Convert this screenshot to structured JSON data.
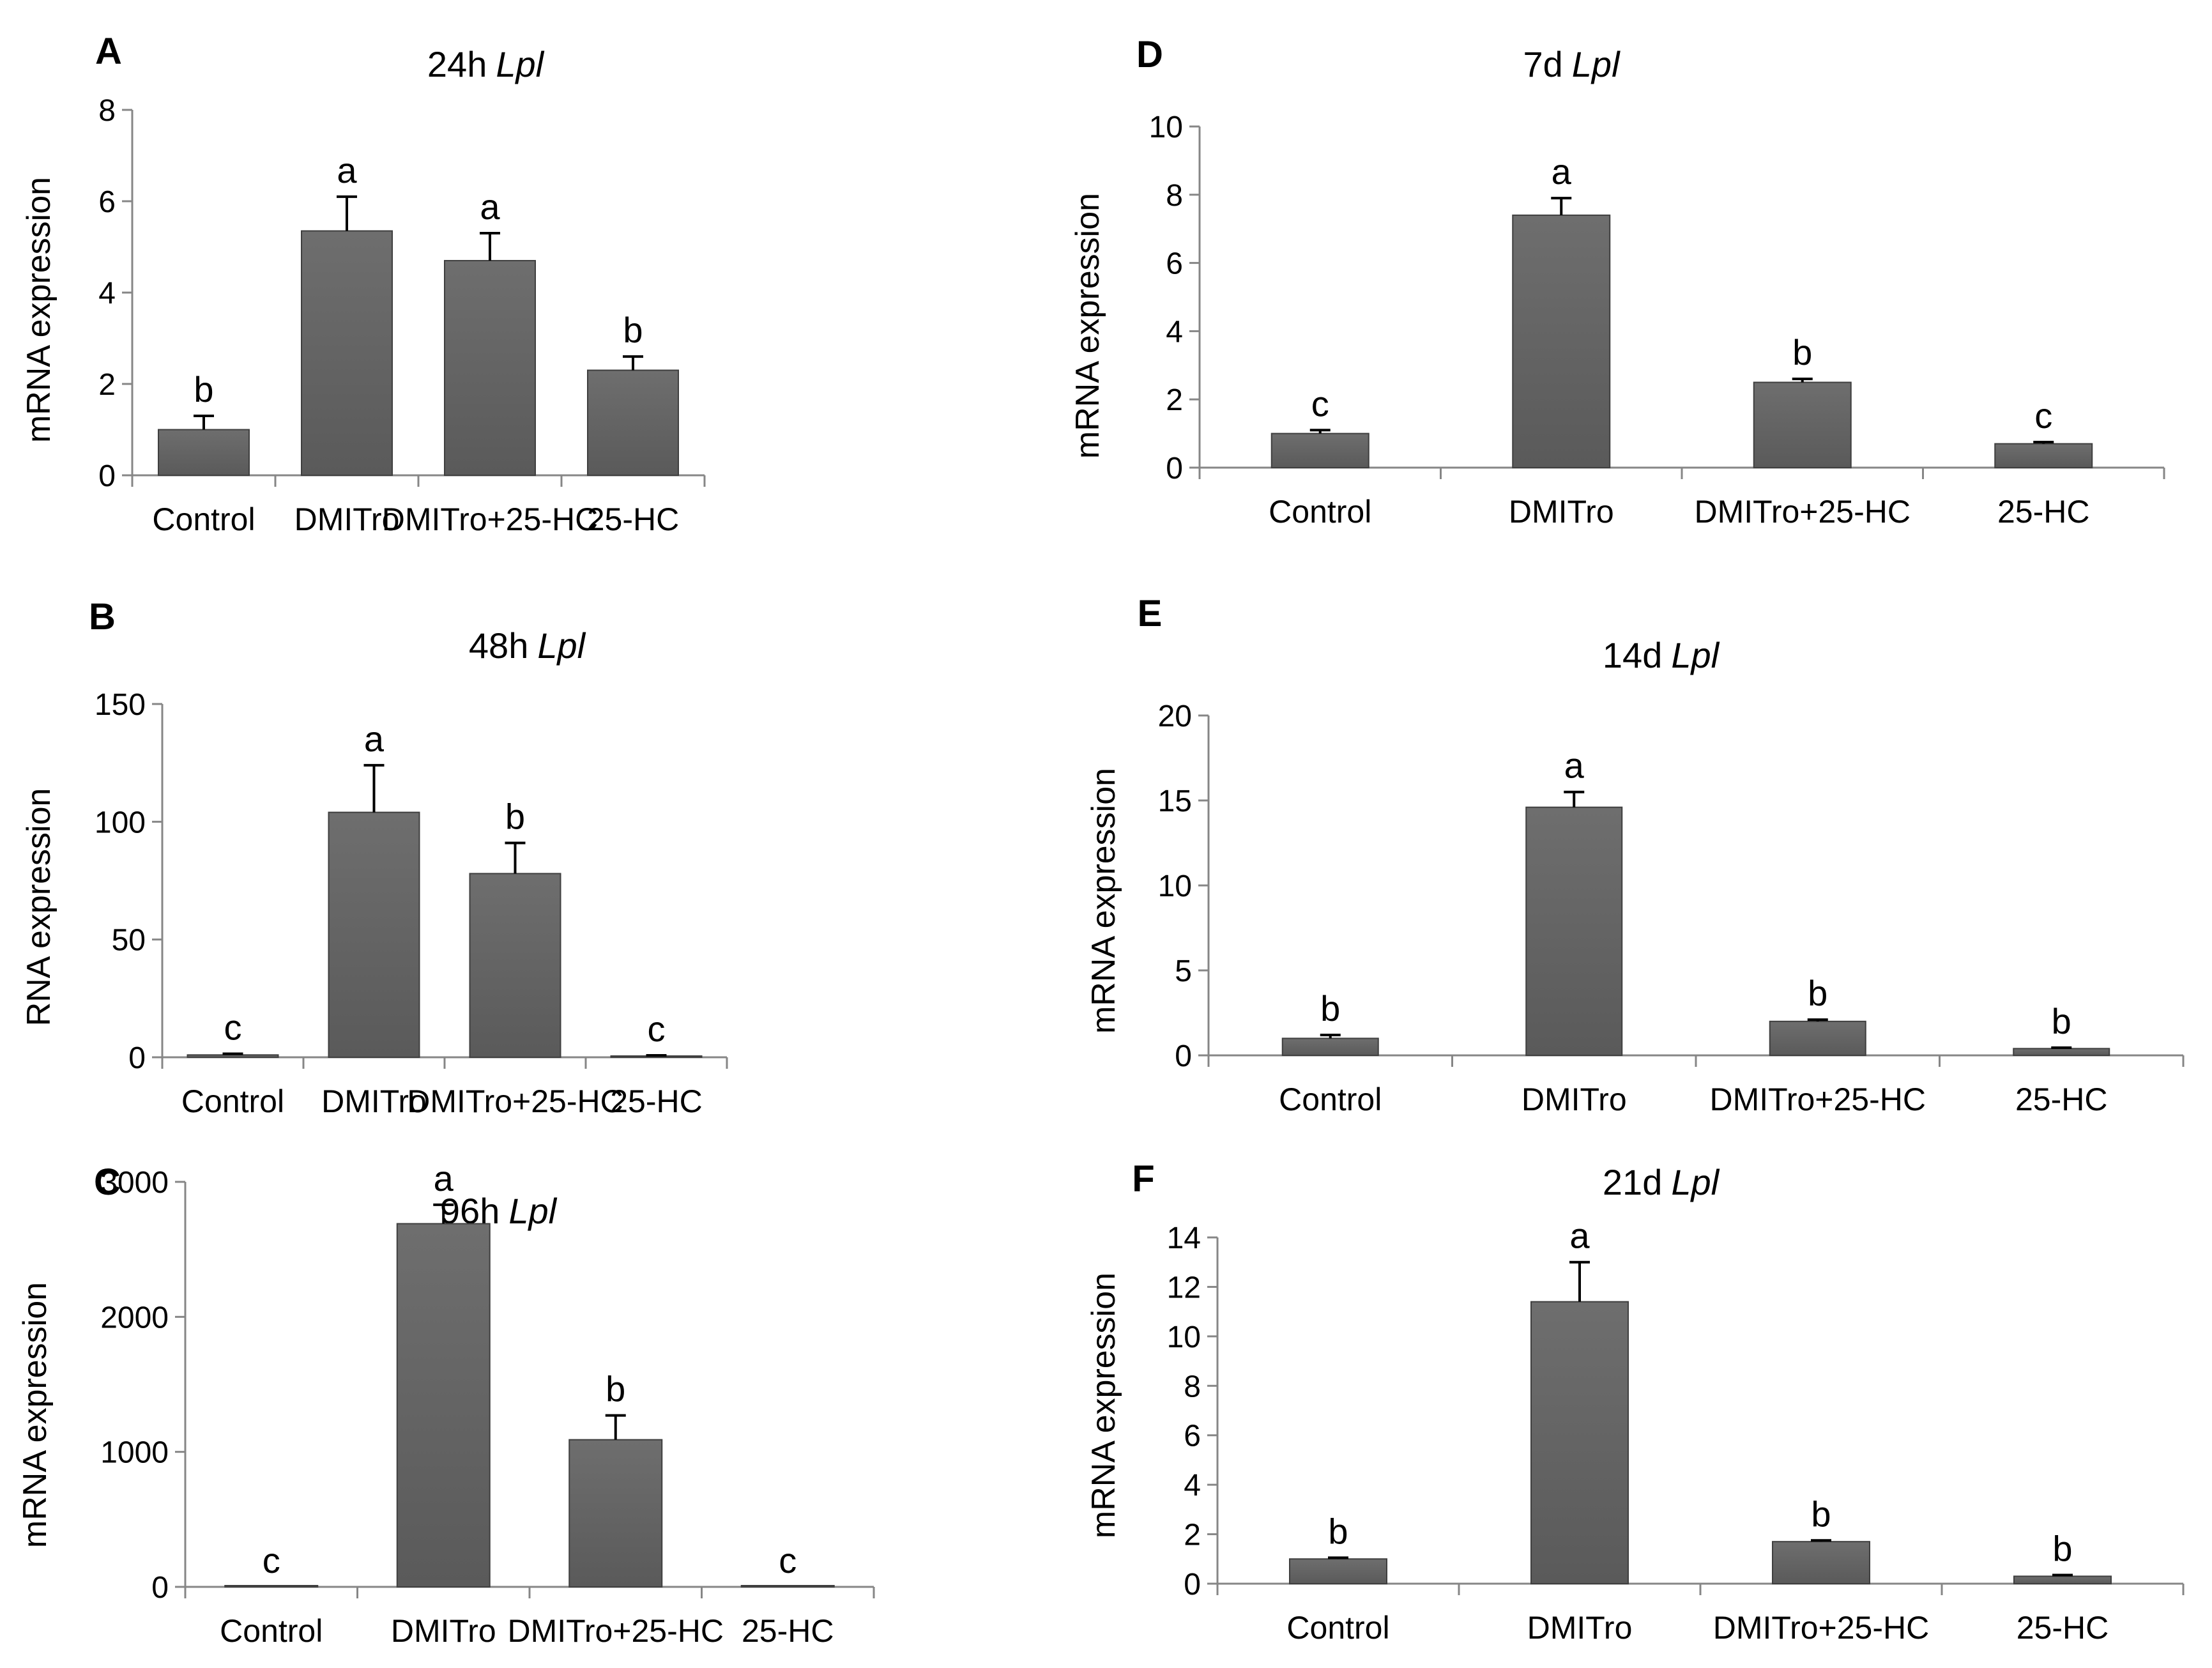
{
  "figure": {
    "description_labels": {
      "gene_symbol": "Lpl"
    },
    "bar_color": "#5a5a5a",
    "bar_edge_color": "#3f3f3f",
    "axis_color": "#868686"
  },
  "chart_data": [
    {
      "panel": "A",
      "type": "bar",
      "title": "24h Lpl",
      "title_prefix": "24h",
      "title_gene": "Lpl",
      "xlabel": "",
      "ylabel": "mRNA expression",
      "categories": [
        "Control",
        "DMITro",
        "DMITro+25-HC",
        "25-HC"
      ],
      "values": [
        1.0,
        5.35,
        4.7,
        2.3
      ],
      "errors": [
        0.3,
        0.75,
        0.6,
        0.3
      ],
      "significance": [
        "b",
        "a",
        "a",
        "b"
      ],
      "ylim": [
        0,
        8
      ],
      "yticks": [
        0,
        2,
        4,
        6,
        8
      ]
    },
    {
      "panel": "B",
      "type": "bar",
      "title": "48h Lpl",
      "title_prefix": "48h",
      "title_gene": "Lpl",
      "xlabel": "",
      "ylabel": "RNA expression",
      "categories": [
        "Control",
        "DMITro",
        "DMITro+25-HC",
        "25-HC"
      ],
      "values": [
        1,
        104,
        78,
        0.5
      ],
      "errors": [
        0.5,
        20,
        13,
        0.3
      ],
      "significance": [
        "c",
        "a",
        "b",
        "c"
      ],
      "ylim": [
        0,
        150
      ],
      "yticks": [
        0,
        50,
        100,
        150
      ]
    },
    {
      "panel": "C",
      "type": "bar",
      "title": "96h Lpl",
      "title_prefix": "96h",
      "title_gene": "Lpl",
      "xlabel": "",
      "ylabel": "mRNA expression",
      "categories": [
        "Control",
        "DMITro",
        "DMITro+25-HC",
        "25-HC"
      ],
      "values": [
        1,
        2690,
        1090,
        1
      ],
      "errors": [
        0,
        140,
        180,
        0
      ],
      "significance": [
        "c",
        "a",
        "b",
        "c"
      ],
      "ylim": [
        0,
        3000
      ],
      "yticks": [
        0,
        1000,
        2000,
        3000
      ]
    },
    {
      "panel": "D",
      "type": "bar",
      "title": "7d Lpl",
      "title_prefix": "7d",
      "title_gene": "Lpl",
      "xlabel": "",
      "ylabel": "mRNA expression",
      "categories": [
        "Control",
        "DMITro",
        "DMITro+25-HC",
        "25-HC"
      ],
      "values": [
        1.0,
        7.4,
        2.5,
        0.7
      ],
      "errors": [
        0.1,
        0.5,
        0.1,
        0.05
      ],
      "significance": [
        "c",
        "a",
        "b",
        "c"
      ],
      "ylim": [
        0,
        10
      ],
      "yticks": [
        0,
        2,
        4,
        6,
        8,
        10
      ]
    },
    {
      "panel": "E",
      "type": "bar",
      "title": "14d Lpl",
      "title_prefix": "14d",
      "title_gene": "Lpl",
      "xlabel": "",
      "ylabel": "mRNA expression",
      "categories": [
        "Control",
        "DMITro",
        "DMITro+25-HC",
        "25-HC"
      ],
      "values": [
        1.0,
        14.6,
        2.0,
        0.4
      ],
      "errors": [
        0.2,
        0.9,
        0.1,
        0.05
      ],
      "significance": [
        "b",
        "a",
        "b",
        "b"
      ],
      "ylim": [
        0,
        20
      ],
      "yticks": [
        0,
        5,
        10,
        15,
        20
      ]
    },
    {
      "panel": "F",
      "type": "bar",
      "title": "21d Lpl",
      "title_prefix": "21d",
      "title_gene": "Lpl",
      "xlabel": "",
      "ylabel": "mRNA expression",
      "categories": [
        "Control",
        "DMITro",
        "DMITro+25-HC",
        "25-HC"
      ],
      "values": [
        1.0,
        11.4,
        1.7,
        0.3
      ],
      "errors": [
        0.05,
        1.6,
        0.05,
        0.05
      ],
      "significance": [
        "b",
        "a",
        "b",
        "b"
      ],
      "ylim": [
        0,
        14
      ],
      "yticks": [
        0,
        2,
        4,
        6,
        8,
        10,
        12,
        14
      ]
    }
  ]
}
